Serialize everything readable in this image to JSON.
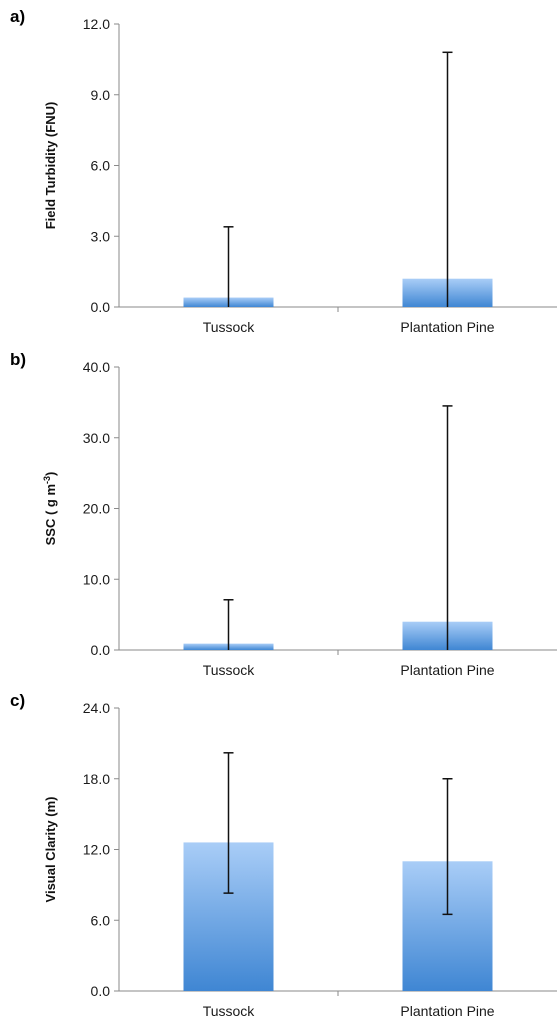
{
  "chart_data": [
    {
      "type": "bar",
      "panel_label": "a)",
      "ylabel": "Field Turbidity (FNU)",
      "ylim": [
        0,
        12
      ],
      "yticks": [
        "0.0",
        "3.0",
        "6.0",
        "9.0",
        "12.0"
      ],
      "ytick_values": [
        0,
        3,
        6,
        9,
        12
      ],
      "categories": [
        "Tussock",
        "Plantation Pine"
      ],
      "values": [
        0.4,
        1.2
      ],
      "error_low": [
        0,
        0
      ],
      "error_high": [
        3.4,
        10.8
      ],
      "grid": false,
      "legend": "none"
    },
    {
      "type": "bar",
      "panel_label": "b)",
      "ylabel": "SSC ( g m",
      "ylabel_sup": "-3",
      "ylabel_tail": ")",
      "ylim": [
        0,
        40
      ],
      "yticks": [
        "0.0",
        "10.0",
        "20.0",
        "30.0",
        "40.0"
      ],
      "ytick_values": [
        0,
        10,
        20,
        30,
        40
      ],
      "categories": [
        "Tussock",
        "Plantation Pine"
      ],
      "values": [
        0.9,
        4.0
      ],
      "error_low": [
        0,
        0
      ],
      "error_high": [
        7.1,
        34.5
      ],
      "grid": false,
      "legend": "none"
    },
    {
      "type": "bar",
      "panel_label": "c)",
      "ylabel": "Visual Clarity (m)",
      "ylim": [
        0,
        24
      ],
      "yticks": [
        "0.0",
        "6.0",
        "12.0",
        "18.0",
        "24.0"
      ],
      "ytick_values": [
        0,
        6,
        12,
        18,
        24
      ],
      "categories": [
        "Tussock",
        "Plantation Pine"
      ],
      "values": [
        12.6,
        11.0
      ],
      "error_low": [
        8.3,
        6.5
      ],
      "error_high": [
        20.2,
        18.0
      ],
      "grid": false,
      "legend": "none"
    }
  ],
  "colors": {
    "bar_top": "#a9cdf7",
    "bar_bottom": "#3f86d3",
    "axis": "#8a8a8a",
    "error_bar": "#111111"
  }
}
